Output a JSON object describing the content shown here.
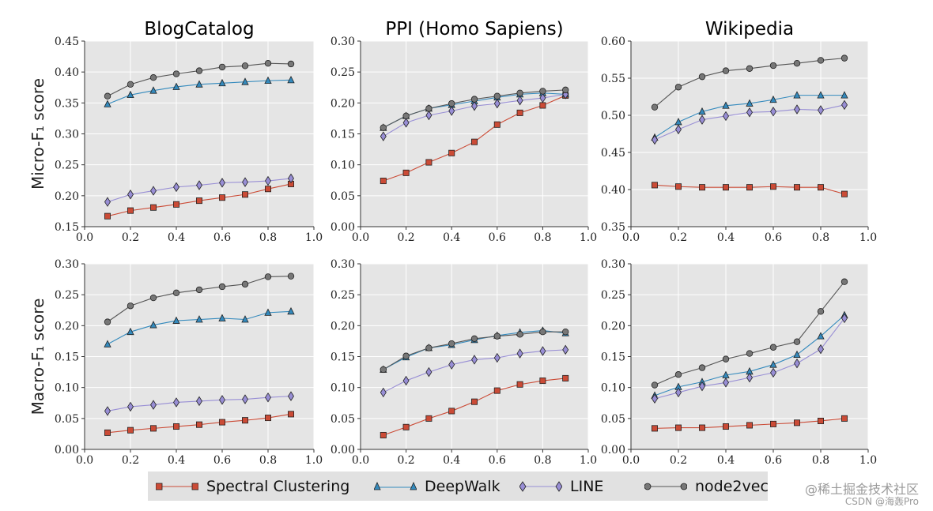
{
  "legend": {
    "items": [
      {
        "label": "Spectral Clustering",
        "marker": "square",
        "color": "#cb4b36"
      },
      {
        "label": "DeepWalk",
        "marker": "triangle",
        "color": "#348abd"
      },
      {
        "label": "LINE",
        "marker": "diamond",
        "color": "#988ed5"
      },
      {
        "label": "node2vec",
        "marker": "circle",
        "color": "#777777"
      }
    ]
  },
  "watermark": {
    "line1": "@稀土掘金技术社区",
    "line2": "CSDN @海轰Pro"
  },
  "chart_data": [
    {
      "type": "line",
      "title": "BlogCatalog",
      "ylabel": "Micro-F₁ score",
      "xlabel": "",
      "xlim": [
        0.0,
        1.0
      ],
      "ylim": [
        0.15,
        0.45
      ],
      "xticks": [
        "0.0",
        "0.2",
        "0.4",
        "0.6",
        "0.8",
        "1.0"
      ],
      "yticks": [
        "0.15",
        "0.20",
        "0.25",
        "0.30",
        "0.35",
        "0.40",
        "0.45"
      ],
      "x": [
        0.1,
        0.2,
        0.3,
        0.4,
        0.5,
        0.6,
        0.7,
        0.8,
        0.9
      ],
      "series": [
        {
          "name": "Spectral Clustering",
          "values": [
            0.167,
            0.176,
            0.181,
            0.186,
            0.192,
            0.197,
            0.202,
            0.211,
            0.219
          ]
        },
        {
          "name": "DeepWalk",
          "values": [
            0.348,
            0.363,
            0.37,
            0.376,
            0.38,
            0.382,
            0.384,
            0.386,
            0.387
          ]
        },
        {
          "name": "LINE",
          "values": [
            0.19,
            0.202,
            0.208,
            0.214,
            0.217,
            0.221,
            0.222,
            0.224,
            0.228
          ]
        },
        {
          "name": "node2vec",
          "values": [
            0.361,
            0.38,
            0.391,
            0.397,
            0.402,
            0.408,
            0.41,
            0.414,
            0.413
          ]
        }
      ]
    },
    {
      "type": "line",
      "title": "PPI (Homo Sapiens)",
      "ylabel": "",
      "xlabel": "",
      "xlim": [
        0.0,
        1.0
      ],
      "ylim": [
        0.0,
        0.3
      ],
      "xticks": [
        "0.0",
        "0.2",
        "0.4",
        "0.6",
        "0.8",
        "1.0"
      ],
      "yticks": [
        "0.00",
        "0.05",
        "0.10",
        "0.15",
        "0.20",
        "0.25",
        "0.30"
      ],
      "x": [
        0.1,
        0.2,
        0.3,
        0.4,
        0.5,
        0.6,
        0.7,
        0.8,
        0.9
      ],
      "series": [
        {
          "name": "Spectral Clustering",
          "values": [
            0.074,
            0.087,
            0.104,
            0.119,
            0.137,
            0.165,
            0.184,
            0.196,
            0.212
          ]
        },
        {
          "name": "DeepWalk",
          "values": [
            0.16,
            0.179,
            0.191,
            0.197,
            0.203,
            0.209,
            0.214,
            0.216,
            0.214
          ]
        },
        {
          "name": "LINE",
          "values": [
            0.146,
            0.168,
            0.18,
            0.187,
            0.195,
            0.199,
            0.204,
            0.208,
            0.214
          ]
        },
        {
          "name": "node2vec",
          "values": [
            0.16,
            0.179,
            0.191,
            0.199,
            0.206,
            0.211,
            0.216,
            0.219,
            0.221
          ]
        }
      ]
    },
    {
      "type": "line",
      "title": "Wikipedia",
      "ylabel": "",
      "xlabel": "",
      "xlim": [
        0.0,
        1.0
      ],
      "ylim": [
        0.35,
        0.6
      ],
      "xticks": [
        "0.0",
        "0.2",
        "0.4",
        "0.6",
        "0.8",
        "1.0"
      ],
      "yticks": [
        "0.35",
        "0.40",
        "0.45",
        "0.50",
        "0.55",
        "0.60"
      ],
      "x": [
        0.1,
        0.2,
        0.3,
        0.4,
        0.5,
        0.6,
        0.7,
        0.8,
        0.9
      ],
      "series": [
        {
          "name": "Spectral Clustering",
          "values": [
            0.406,
            0.404,
            0.403,
            0.403,
            0.403,
            0.404,
            0.403,
            0.403,
            0.394
          ]
        },
        {
          "name": "DeepWalk",
          "values": [
            0.47,
            0.491,
            0.505,
            0.513,
            0.516,
            0.521,
            0.527,
            0.527,
            0.527
          ]
        },
        {
          "name": "LINE",
          "values": [
            0.467,
            0.481,
            0.494,
            0.499,
            0.504,
            0.505,
            0.508,
            0.507,
            0.514
          ]
        },
        {
          "name": "node2vec",
          "values": [
            0.511,
            0.538,
            0.552,
            0.56,
            0.563,
            0.567,
            0.57,
            0.574,
            0.577
          ]
        }
      ]
    },
    {
      "type": "line",
      "title": "",
      "ylabel": "Macro-F₁ score",
      "xlabel": "",
      "xlim": [
        0.0,
        1.0
      ],
      "ylim": [
        0.0,
        0.3
      ],
      "xticks": [
        "0.0",
        "0.2",
        "0.4",
        "0.6",
        "0.8",
        "1.0"
      ],
      "yticks": [
        "0.00",
        "0.05",
        "0.10",
        "0.15",
        "0.20",
        "0.25",
        "0.30"
      ],
      "x": [
        0.1,
        0.2,
        0.3,
        0.4,
        0.5,
        0.6,
        0.7,
        0.8,
        0.9
      ],
      "series": [
        {
          "name": "Spectral Clustering",
          "values": [
            0.027,
            0.031,
            0.034,
            0.037,
            0.04,
            0.044,
            0.047,
            0.051,
            0.057
          ]
        },
        {
          "name": "DeepWalk",
          "values": [
            0.17,
            0.19,
            0.201,
            0.208,
            0.21,
            0.212,
            0.21,
            0.221,
            0.223
          ]
        },
        {
          "name": "LINE",
          "values": [
            0.062,
            0.069,
            0.072,
            0.076,
            0.078,
            0.08,
            0.081,
            0.084,
            0.086
          ]
        },
        {
          "name": "node2vec",
          "values": [
            0.206,
            0.232,
            0.245,
            0.253,
            0.258,
            0.263,
            0.267,
            0.279,
            0.28
          ]
        }
      ]
    },
    {
      "type": "line",
      "title": "",
      "ylabel": "",
      "xlabel": "",
      "xlim": [
        0.0,
        1.0
      ],
      "ylim": [
        0.0,
        0.3
      ],
      "xticks": [
        "0.0",
        "0.2",
        "0.4",
        "0.6",
        "0.8",
        "1.0"
      ],
      "yticks": [
        "0.00",
        "0.05",
        "0.10",
        "0.15",
        "0.20",
        "0.25",
        "0.30"
      ],
      "x": [
        0.1,
        0.2,
        0.3,
        0.4,
        0.5,
        0.6,
        0.7,
        0.8,
        0.9
      ],
      "series": [
        {
          "name": "Spectral Clustering",
          "values": [
            0.023,
            0.036,
            0.05,
            0.062,
            0.077,
            0.095,
            0.105,
            0.111,
            0.115
          ]
        },
        {
          "name": "DeepWalk",
          "values": [
            0.129,
            0.149,
            0.164,
            0.169,
            0.177,
            0.184,
            0.189,
            0.192,
            0.188
          ]
        },
        {
          "name": "LINE",
          "values": [
            0.092,
            0.111,
            0.125,
            0.137,
            0.145,
            0.148,
            0.155,
            0.159,
            0.161
          ]
        },
        {
          "name": "node2vec",
          "values": [
            0.129,
            0.151,
            0.164,
            0.171,
            0.179,
            0.183,
            0.186,
            0.19,
            0.19
          ]
        }
      ]
    },
    {
      "type": "line",
      "title": "",
      "ylabel": "",
      "xlabel": "",
      "xlim": [
        0.0,
        1.0
      ],
      "ylim": [
        0.0,
        0.3
      ],
      "xticks": [
        "0.0",
        "0.2",
        "0.4",
        "0.6",
        "0.8",
        "1.0"
      ],
      "yticks": [
        "0.00",
        "0.05",
        "0.10",
        "0.15",
        "0.20",
        "0.25",
        "0.30"
      ],
      "x": [
        0.1,
        0.2,
        0.3,
        0.4,
        0.5,
        0.6,
        0.7,
        0.8,
        0.9
      ],
      "series": [
        {
          "name": "Spectral Clustering",
          "values": [
            0.034,
            0.035,
            0.035,
            0.037,
            0.039,
            0.041,
            0.043,
            0.046,
            0.05
          ]
        },
        {
          "name": "DeepWalk",
          "values": [
            0.087,
            0.101,
            0.109,
            0.12,
            0.126,
            0.137,
            0.153,
            0.183,
            0.217
          ]
        },
        {
          "name": "LINE",
          "values": [
            0.082,
            0.092,
            0.102,
            0.108,
            0.116,
            0.124,
            0.139,
            0.162,
            0.212
          ]
        },
        {
          "name": "node2vec",
          "values": [
            0.104,
            0.121,
            0.132,
            0.146,
            0.155,
            0.165,
            0.174,
            0.223,
            0.271
          ]
        }
      ]
    }
  ]
}
